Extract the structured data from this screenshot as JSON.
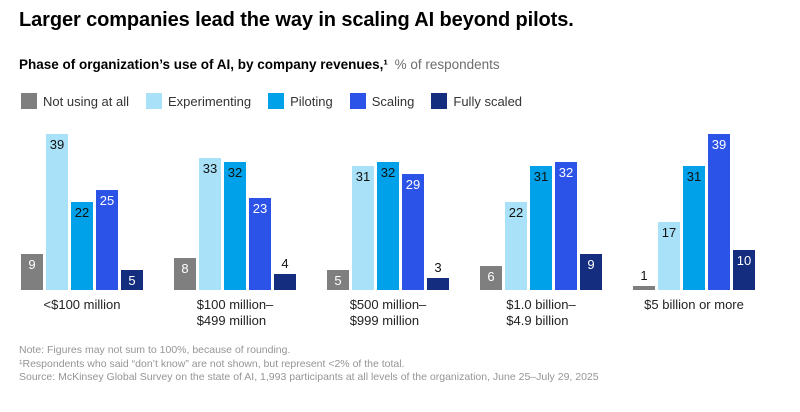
{
  "header": {
    "title": "Larger companies lead the way in scaling AI beyond pilots.",
    "subtitle_bold": "Phase of organization’s use of AI, by company revenues,¹",
    "subtitle_rest": "% of respondents"
  },
  "chart_data": {
    "type": "bar",
    "title": "Phase of organization’s use of AI, by company revenues, % of respondents",
    "categories": [
      "<$100 million",
      "$100 million–\n$499 million",
      "$500 million–\n$999 million",
      "$1.0 billion–\n$4.9 billion",
      "$5 billion or more"
    ],
    "series": [
      {
        "name": "Not using at all",
        "color": "#7f7f7f",
        "label_color": "#ffffff",
        "values": [
          9,
          8,
          5,
          6,
          1
        ]
      },
      {
        "name": "Experimenting",
        "color": "#a8e1f8",
        "label_color": "#111111",
        "values": [
          39,
          33,
          31,
          22,
          17
        ]
      },
      {
        "name": "Piloting",
        "color": "#00a1e9",
        "label_color": "#111111",
        "values": [
          22,
          32,
          32,
          31,
          31
        ]
      },
      {
        "name": "Scaling",
        "color": "#2b53e8",
        "label_color": "#ffffff",
        "values": [
          25,
          23,
          29,
          32,
          39
        ]
      },
      {
        "name": "Fully scaled",
        "color": "#142d7e",
        "label_color": "#ffffff",
        "values": [
          5,
          4,
          3,
          9,
          10
        ]
      }
    ],
    "ylim": [
      0,
      40
    ],
    "grid": false,
    "legend_position": "top",
    "value_labels": "shown on each bar; labels for values below 5 are placed above the bar"
  },
  "footnotes": [
    "Note: Figures may not sum to 100%, because of rounding.",
    "¹Respondents who said “don’t know” are not shown, but represent <2% of the total.",
    "Source: McKinsey Global Survey on the state of AI, 1,993 participants at all levels of the organization, June 25–July 29, 2025"
  ]
}
